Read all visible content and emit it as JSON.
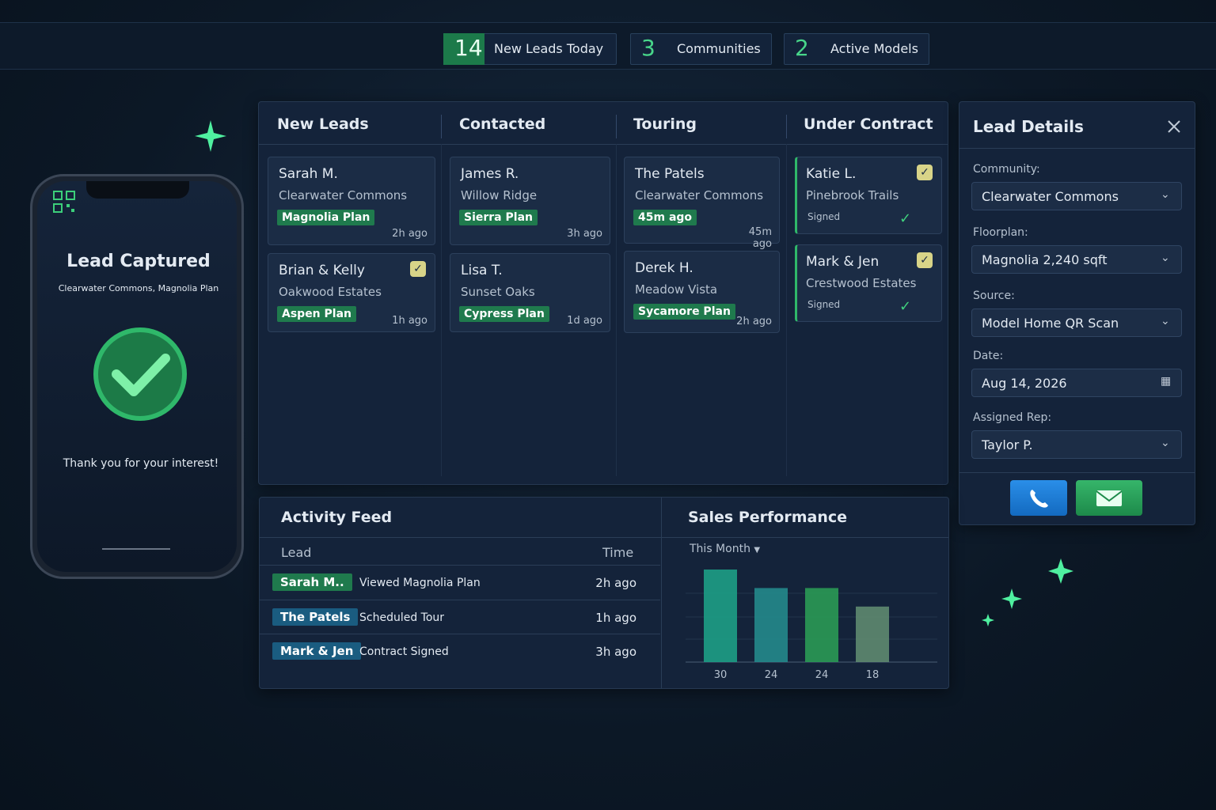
{
  "top_stats": [
    {
      "value": 14,
      "label": "New Leads Today"
    },
    {
      "value": 3,
      "label": "Communities"
    },
    {
      "value": 2,
      "label": "Active Models"
    }
  ],
  "phone": {
    "title": "Lead Captured",
    "subtitle": "Clearwater Commons, Magnolia Plan",
    "message": "Thank you for your interest!"
  },
  "board": {
    "columns": [
      {
        "title": "New Leads",
        "cards": [
          {
            "name": "Sarah M.",
            "community": "Clearwater Commons",
            "plan": "Magnolia Plan",
            "time": "2h ago"
          },
          {
            "name": "Brian & Kelly",
            "community": "Oakwood Estates",
            "plan": "Aspen Plan",
            "time": "1h ago"
          }
        ]
      },
      {
        "title": "Contacted",
        "cards": [
          {
            "name": "James R.",
            "community": "Willow Ridge",
            "plan": "Sierra Plan",
            "time": "3h ago"
          },
          {
            "name": "Lisa T.",
            "community": "Sunset Oaks",
            "plan": "Cypress Plan",
            "time": "1d ago"
          }
        ]
      },
      {
        "title": "Touring",
        "cards": [
          {
            "name": "The Patels",
            "community": "Clearwater Commons",
            "plan": "45m ago",
            "time": "45m ago"
          },
          {
            "name": "Derek H.",
            "community": "Meadow Vista",
            "plan": "Sycamore Plan",
            "time": "2h ago"
          }
        ]
      },
      {
        "title": "Under Contract",
        "cards": [
          {
            "name": "Katie L.",
            "community": "Pinebrook Trails",
            "status": "Signed"
          },
          {
            "name": "Mark & Jen",
            "community": "Crestwood Estates",
            "status": "Signed"
          }
        ]
      }
    ]
  },
  "details": {
    "title": "Lead Details",
    "fields": [
      {
        "label": "Community:",
        "value": "Clearwater Commons"
      },
      {
        "label": "Floorplan:",
        "value": "Magnolia 2,240 sqft"
      },
      {
        "label": "Source:",
        "value": "Model Home QR Scan"
      },
      {
        "label": "Date:",
        "value": "Aug 14, 2026"
      },
      {
        "label": "Assigned Rep:",
        "value": "Taylor P."
      }
    ]
  },
  "activity": {
    "title": "Activity Feed",
    "headers": [
      "Lead",
      "Time"
    ],
    "rows": [
      {
        "lead": "Sarah M..",
        "action": "Viewed Magnolia Plan",
        "time": "2h ago"
      },
      {
        "lead": "The Patels",
        "action": "Scheduled Tour",
        "time": "1h ago"
      },
      {
        "lead": "Mark & Jen",
        "action": "Contract Signed",
        "time": "3h ago"
      }
    ]
  },
  "chart_data": {
    "type": "bar",
    "title": "Sales Performance",
    "period": "This Month",
    "values": [
      30,
      24,
      24,
      18
    ],
    "ylim": [
      0,
      30
    ],
    "colors": [
      "#1d9e86",
      "#238a8c",
      "#2a9a55",
      "#5e8a70"
    ]
  }
}
